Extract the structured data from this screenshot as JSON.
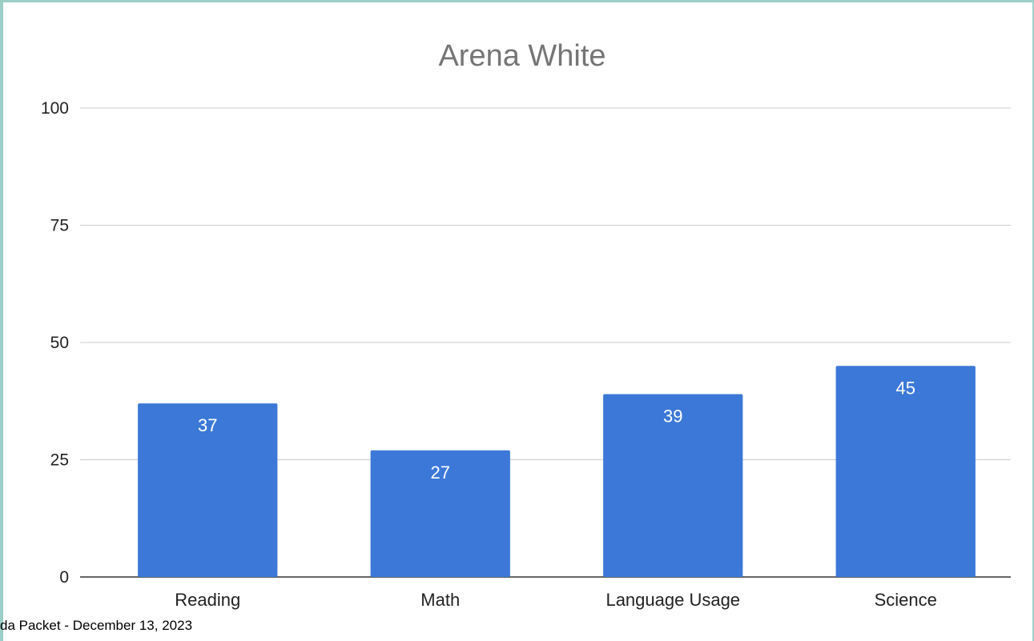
{
  "frame": {
    "color": "#9ccfc7"
  },
  "footer": {
    "text": "da Packet - December 13, 2023"
  },
  "chart_data": {
    "type": "bar",
    "title": "Arena White",
    "categories": [
      "Reading",
      "Math",
      "Language Usage",
      "Science"
    ],
    "values": [
      37,
      27,
      39,
      45
    ],
    "xlabel": "",
    "ylabel": "",
    "ylim": [
      0,
      100
    ],
    "yticks": [
      0,
      25,
      50,
      75,
      100
    ],
    "grid": true,
    "legend": "none",
    "colors": {
      "bar": "#3c78d8",
      "data_label": "#ffffff",
      "title": "#757575",
      "tick_label": "#222222",
      "gridline": "#cccccc",
      "baseline": "#333333"
    }
  }
}
